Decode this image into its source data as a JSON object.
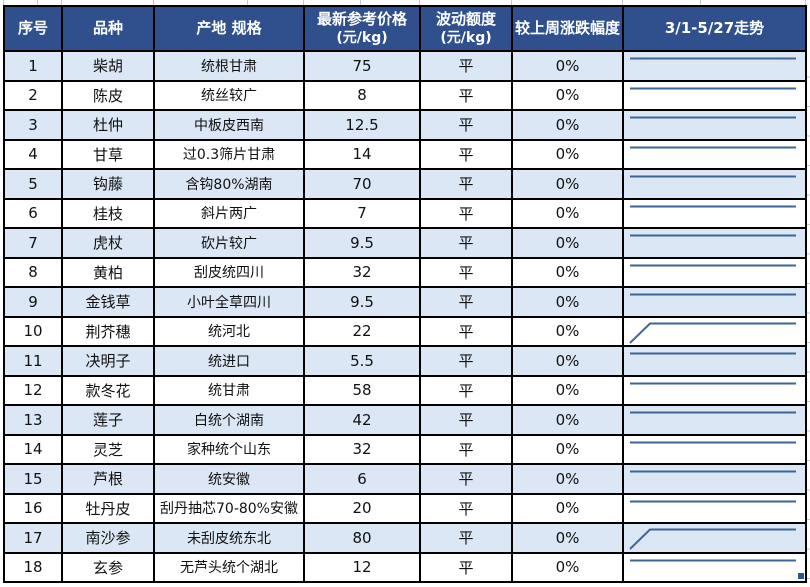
{
  "table": {
    "columns": [
      {
        "id": "no",
        "label": "序号"
      },
      {
        "id": "name",
        "label": "品种"
      },
      {
        "id": "spec",
        "label": "产地 规格"
      },
      {
        "id": "price",
        "label": "最新参考价格",
        "sub": "(元/kg)"
      },
      {
        "id": "fluct",
        "label": "波动额度",
        "sub": "(元/kg)"
      },
      {
        "id": "change",
        "label": "较上周涨跌幅度"
      },
      {
        "id": "trend",
        "label": "3/1-5/27走势"
      }
    ],
    "rows": [
      {
        "no": "1",
        "name": "柴胡",
        "spec": "统根甘肃",
        "price": "75",
        "fluct": "平",
        "change": "0%",
        "trend": "flat"
      },
      {
        "no": "2",
        "name": "陈皮",
        "spec": "统丝较广",
        "price": "8",
        "fluct": "平",
        "change": "0%",
        "trend": "flat"
      },
      {
        "no": "3",
        "name": "杜仲",
        "spec": "中板皮西南",
        "price": "12.5",
        "fluct": "平",
        "change": "0%",
        "trend": "flat"
      },
      {
        "no": "4",
        "name": "甘草",
        "spec": "过0.3筛片甘肃",
        "price": "14",
        "fluct": "平",
        "change": "0%",
        "trend": "flat"
      },
      {
        "no": "5",
        "name": "钩藤",
        "spec": "含钩80%湖南",
        "price": "70",
        "fluct": "平",
        "change": "0%",
        "trend": "flat"
      },
      {
        "no": "6",
        "name": "桂枝",
        "spec": "斜片两广",
        "price": "7",
        "fluct": "平",
        "change": "0%",
        "trend": "flat"
      },
      {
        "no": "7",
        "name": "虎杖",
        "spec": "砍片较广",
        "price": "9.5",
        "fluct": "平",
        "change": "0%",
        "trend": "flat"
      },
      {
        "no": "8",
        "name": "黄柏",
        "spec": "刮皮统四川",
        "price": "32",
        "fluct": "平",
        "change": "0%",
        "trend": "flat"
      },
      {
        "no": "9",
        "name": "金钱草",
        "spec": "小叶全草四川",
        "price": "9.5",
        "fluct": "平",
        "change": "0%",
        "trend": "flat"
      },
      {
        "no": "10",
        "name": "荆芥穗",
        "spec": "统河北",
        "price": "22",
        "fluct": "平",
        "change": "0%",
        "trend": "rise"
      },
      {
        "no": "11",
        "name": "决明子",
        "spec": "统进口",
        "price": "5.5",
        "fluct": "平",
        "change": "0%",
        "trend": "flat"
      },
      {
        "no": "12",
        "name": "款冬花",
        "spec": "统甘肃",
        "price": "58",
        "fluct": "平",
        "change": "0%",
        "trend": "flat"
      },
      {
        "no": "13",
        "name": "莲子",
        "spec": "白统个湖南",
        "price": "42",
        "fluct": "平",
        "change": "0%",
        "trend": "flat"
      },
      {
        "no": "14",
        "name": "灵芝",
        "spec": "家种统个山东",
        "price": "32",
        "fluct": "平",
        "change": "0%",
        "trend": "flat"
      },
      {
        "no": "15",
        "name": "芦根",
        "spec": "统安徽",
        "price": "6",
        "fluct": "平",
        "change": "0%",
        "trend": "flat"
      },
      {
        "no": "16",
        "name": "牡丹皮",
        "spec": "刮丹抽芯70-80%安徽",
        "price": "20",
        "fluct": "平",
        "change": "0%",
        "trend": "flat"
      },
      {
        "no": "17",
        "name": "南沙参",
        "spec": "未刮皮统东北",
        "price": "80",
        "fluct": "平",
        "change": "0%",
        "trend": "rise"
      },
      {
        "no": "18",
        "name": "玄参",
        "spec": "无芦头统个湖北",
        "price": "12",
        "fluct": "平",
        "change": "0%",
        "trend": "flat"
      }
    ]
  },
  "colors": {
    "header_bg": "#2F4F8D",
    "header_text": "#FFFFFF",
    "row_alt_bg": "#DBE7F4",
    "row_bg": "#FFFFFF",
    "border": "#000000",
    "sparkline": "#3E6496",
    "text": "#111111",
    "fill_handle": "#2B579A"
  }
}
